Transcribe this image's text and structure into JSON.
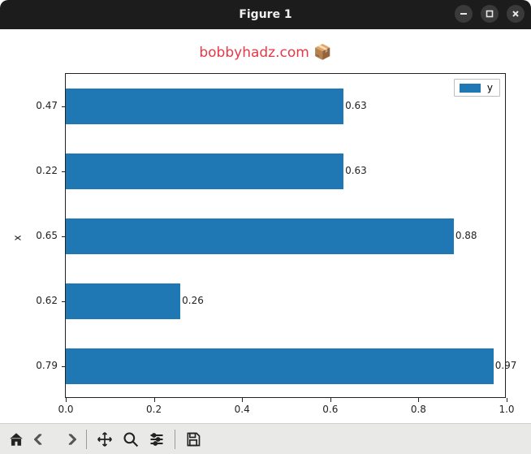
{
  "window": {
    "title": "Figure 1",
    "controls": {
      "min": "minimize",
      "max": "maximize",
      "close": "close"
    }
  },
  "figure": {
    "title_text": "bobbyhadz.com",
    "title_emoji": "📦",
    "title_color": "#e63946",
    "title_fontsize": 17,
    "ylabel": "x",
    "background_color": "#ffffff",
    "border_color": "#222222"
  },
  "chart": {
    "type": "barh",
    "bar_color": "#1f77b4",
    "bar_rel_height": 0.55,
    "xlim": [
      0.0,
      1.0
    ],
    "xticks": [
      0.0,
      0.2,
      0.4,
      0.6,
      0.8,
      1.0
    ],
    "xtick_labels": [
      "0.0",
      "0.2",
      "0.4",
      "0.6",
      "0.8",
      "1.0"
    ],
    "y_categories": [
      "0.47",
      "0.22",
      "0.65",
      "0.62",
      "0.79"
    ],
    "values": [
      0.63,
      0.63,
      0.88,
      0.26,
      0.97
    ],
    "value_labels": [
      "0.63",
      "0.63",
      "0.88",
      "0.26",
      "0.97"
    ],
    "label_fontsize": 12,
    "label_color": "#222222"
  },
  "legend": {
    "label": "y",
    "swatch_color": "#1f77b4",
    "border_color": "#bfbfbf",
    "position": "upper-right"
  },
  "toolbar": {
    "items": [
      {
        "name": "home-icon"
      },
      {
        "name": "back-icon"
      },
      {
        "name": "forward-icon"
      },
      {
        "sep": true
      },
      {
        "name": "pan-icon"
      },
      {
        "name": "zoom-icon"
      },
      {
        "name": "subplots-icon"
      },
      {
        "sep": true
      },
      {
        "name": "save-icon"
      }
    ]
  }
}
